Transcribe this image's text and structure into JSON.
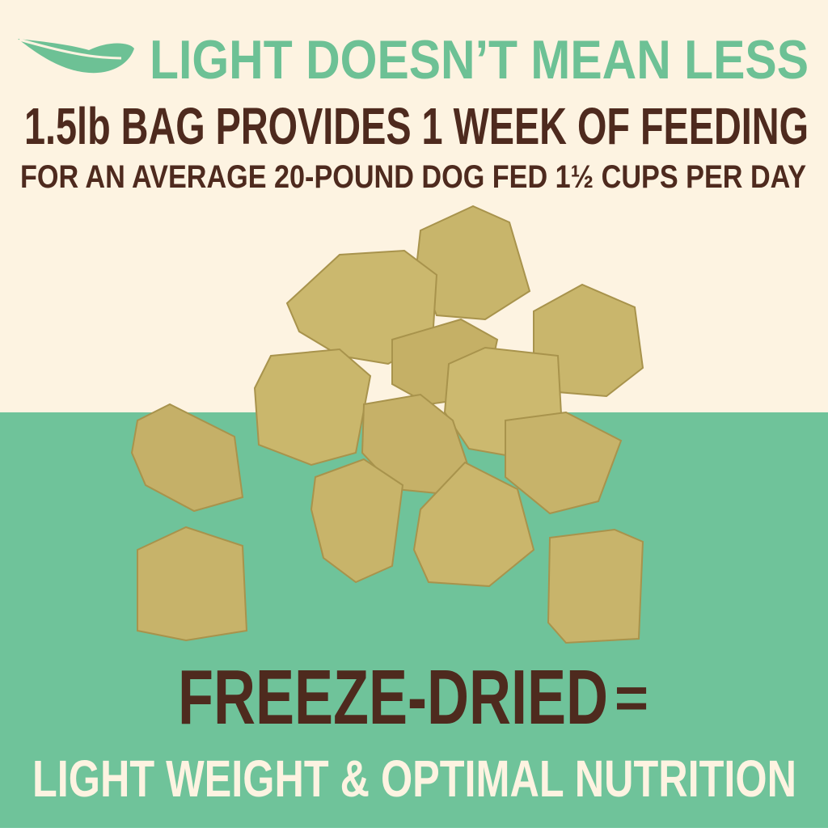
{
  "header": {
    "tagline": "LIGHT DOESN’T MEAN LESS",
    "headline": "1.5lb BAG PROVIDES 1 WEEK OF FEEDING",
    "subline": "FOR AN AVERAGE 20-POUND DOG FED 1½ CUPS PER DAY"
  },
  "footer": {
    "keyword": "FREEZE-DRIED",
    "equals": "=",
    "result": "LIGHT WEIGHT & OPTIMAL NUTRITION"
  }
}
